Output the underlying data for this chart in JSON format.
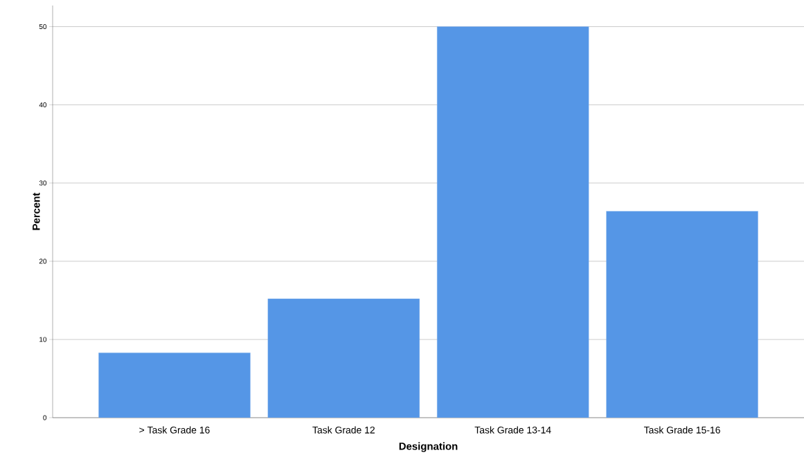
{
  "chart_data": {
    "type": "bar",
    "xlabel": "Designation",
    "ylabel": "Percent",
    "categories": [
      "> Task Grade 16",
      "Task Grade 12",
      "Task Grade 13-14",
      "Task Grade 15-16"
    ],
    "values": [
      8.3,
      15.2,
      50.0,
      26.4
    ],
    "color": "#5596e6",
    "ylim": [
      0,
      52.7
    ],
    "yticks": [
      0,
      10,
      20,
      30,
      40,
      50
    ],
    "grid": "y"
  }
}
